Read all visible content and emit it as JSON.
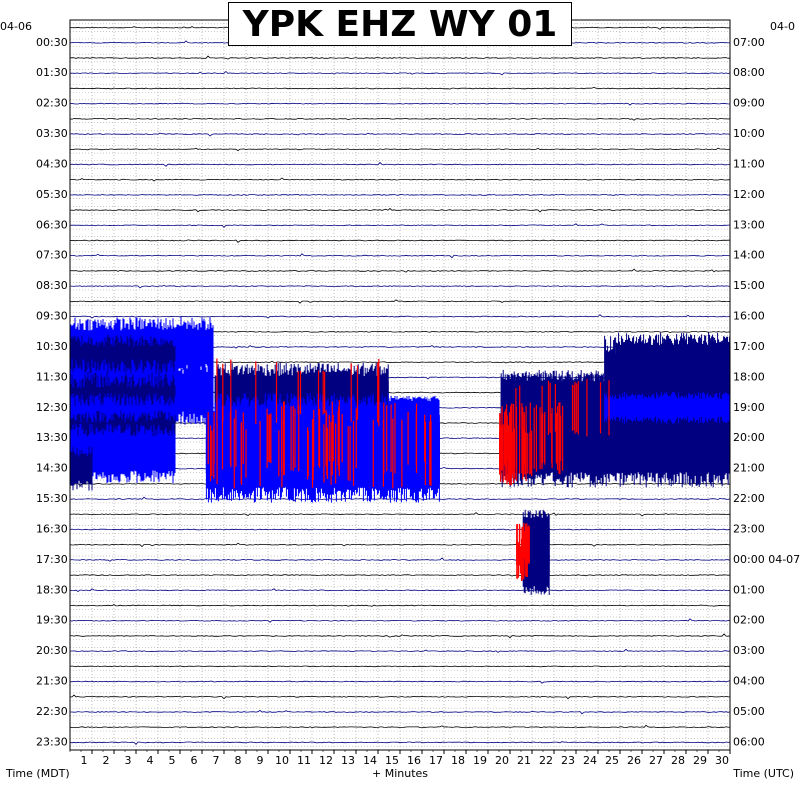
{
  "chart_data": {
    "type": "line",
    "title": "YPK EHZ WY 01",
    "xlabel_center": "+ Minutes",
    "xlabel_left": "Time (MDT)",
    "xlabel_right": "Time (UTC)",
    "date_left": "04-06",
    "date_right": "04-0",
    "x_ticks": [
      "1",
      "2",
      "3",
      "4",
      "5",
      "6",
      "7",
      "8",
      "9",
      "10",
      "11",
      "12",
      "13",
      "14",
      "15",
      "16",
      "17",
      "18",
      "19",
      "20",
      "21",
      "22",
      "23",
      "24",
      "25",
      "26",
      "27",
      "28",
      "29",
      "30"
    ],
    "xlim": [
      0,
      30
    ],
    "left_labels": [
      "00:30",
      "01:30",
      "02:30",
      "03:30",
      "04:30",
      "05:30",
      "06:30",
      "07:30",
      "08:30",
      "09:30",
      "10:30",
      "11:30",
      "12:30",
      "13:30",
      "14:30",
      "15:30",
      "16:30",
      "17:30",
      "18:30",
      "19:30",
      "20:30",
      "21:30",
      "22:30",
      "23:30"
    ],
    "right_labels": [
      "07:00",
      "08:00",
      "09:00",
      "10:00",
      "11:00",
      "12:00",
      "13:00",
      "14:00",
      "15:00",
      "16:00",
      "17:00",
      "18:00",
      "19:00",
      "20:00",
      "21:00",
      "22:00",
      "23:00",
      "00:00 04-07",
      "01:00",
      "02:00",
      "03:00",
      "04:00",
      "05:00",
      "06:00"
    ],
    "trace_count": 48,
    "trace_colors": [
      "#000080",
      "#0000ff",
      "#ff0000"
    ],
    "grid": true
  }
}
